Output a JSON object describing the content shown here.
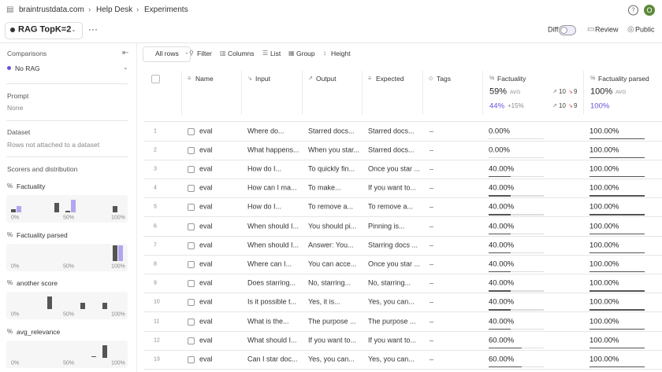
{
  "breadcrumbs": [
    "braintrustdata.com",
    "Help Desk",
    "Experiments"
  ],
  "avatar": "O",
  "experiment": "RAG TopK=2",
  "actions": {
    "diff": "Diff",
    "review": "Review",
    "public": "Public"
  },
  "sidebar": {
    "comparisons_label": "Comparisons",
    "comparison": "No RAG",
    "prompt_label": "Prompt",
    "prompt": "None",
    "dataset_label": "Dataset",
    "dataset": "Rows not attached to a dataset",
    "scorers_label": "Scorers and distribution",
    "scorers": [
      {
        "name": "Factuality",
        "axis": [
          "0%",
          "50%",
          "100%"
        ],
        "bars": [
          {
            "score": 0,
            "base": 1,
            "comparison": 2
          },
          {
            "score": 42,
            "base": 3,
            "comparison": 0
          },
          {
            "score": 52,
            "base": 0.5,
            "comparison": 4
          },
          {
            "score": 98,
            "base": 2,
            "comparison": 0
          }
        ]
      },
      {
        "name": "Factuality parsed",
        "axis": [
          "0%",
          "50%",
          "100%"
        ],
        "bars": [
          {
            "score": 98,
            "base": 5,
            "comparison": 5
          }
        ]
      },
      {
        "name": "another score",
        "axis": [
          "0%",
          "50%",
          "100%"
        ],
        "bars": [
          {
            "score": 35,
            "base": 4,
            "comparison": 0
          },
          {
            "score": 67,
            "base": 2,
            "comparison": 0
          },
          {
            "score": 88,
            "base": 2,
            "comparison": 0
          }
        ]
      },
      {
        "name": "avg_relevance",
        "axis": [
          "0%",
          "50%",
          "100%"
        ],
        "bars": [
          {
            "score": 77,
            "base": 0.3,
            "comparison": 0
          },
          {
            "score": 88,
            "base": 4,
            "comparison": 0
          }
        ]
      }
    ]
  },
  "toolbar": [
    "All rows",
    "Filter",
    "Columns",
    "List",
    "Group",
    "Height"
  ],
  "table": {
    "columns": [
      "Name",
      "Input",
      "Output",
      "Expected",
      "Tags",
      "Factuality",
      "Factuality parsed"
    ],
    "summary": {
      "factuality": {
        "avg": "59%",
        "avg_label": "AVG",
        "compare": "44%",
        "delta": "+15%",
        "improvements": "10",
        "regressions": "9",
        "compare_improvements": "10",
        "compare_regressions": "9"
      },
      "factuality_parsed": {
        "avg": "100%",
        "avg_label": "AVG",
        "compare": "100%"
      }
    },
    "rows": [
      {
        "index": 1,
        "name": "eval",
        "input": "Where do...",
        "output": "Starred docs...",
        "expected": "Starred docs...",
        "tags": "–",
        "factuality": {
          "value": 0,
          "label": "0.00%"
        },
        "factuality_parsed": {
          "value": 100,
          "label": "100.00%"
        }
      },
      {
        "index": 2,
        "name": "eval",
        "input": "What happens...",
        "output": "When you star...",
        "expected": "Starred docs...",
        "tags": "–",
        "factuality": {
          "value": 0,
          "label": "0.00%"
        },
        "factuality_parsed": {
          "value": 100,
          "label": "100.00%"
        }
      },
      {
        "index": 3,
        "name": "eval",
        "input": "How do I...",
        "output": "To quickly fin...",
        "expected": "Once you star ...",
        "tags": "–",
        "factuality": {
          "value": 40,
          "label": "40.00%"
        },
        "factuality_parsed": {
          "value": 100,
          "label": "100.00%"
        }
      },
      {
        "index": 4,
        "name": "eval",
        "input": "How can I ma...",
        "output": "To make...",
        "expected": "If you want to...",
        "tags": "–",
        "factuality": {
          "value": 40,
          "label": "40.00%"
        },
        "factuality_parsed": {
          "value": 100,
          "label": "100.00%"
        }
      },
      {
        "index": 5,
        "name": "eval",
        "input": "How do I...",
        "output": "To remove a...",
        "expected": "To remove a...",
        "tags": "–",
        "factuality": {
          "value": 40,
          "label": "40.00%"
        },
        "factuality_parsed": {
          "value": 100,
          "label": "100.00%"
        }
      },
      {
        "index": 6,
        "name": "eval",
        "input": "When should I...",
        "output": "You should pi...",
        "expected": "Pinning is...",
        "tags": "–",
        "factuality": {
          "value": 40,
          "label": "40.00%"
        },
        "factuality_parsed": {
          "value": 100,
          "label": "100.00%"
        }
      },
      {
        "index": 7,
        "name": "eval",
        "input": "When should I...",
        "output": "Answer: You...",
        "expected": "Starring docs ...",
        "tags": "–",
        "factuality": {
          "value": 40,
          "label": "40.00%"
        },
        "factuality_parsed": {
          "value": 100,
          "label": "100.00%"
        }
      },
      {
        "index": 8,
        "name": "eval",
        "input": "Where can I...",
        "output": "You can acce...",
        "expected": "Once you star ...",
        "tags": "–",
        "factuality": {
          "value": 40,
          "label": "40.00%"
        },
        "factuality_parsed": {
          "value": 100,
          "label": "100.00%"
        }
      },
      {
        "index": 9,
        "name": "eval",
        "input": "Does starring...",
        "output": "No, starring...",
        "expected": "No, starring...",
        "tags": "–",
        "factuality": {
          "value": 40,
          "label": "40.00%"
        },
        "factuality_parsed": {
          "value": 100,
          "label": "100.00%"
        }
      },
      {
        "index": 10,
        "name": "eval",
        "input": "Is it possible t...",
        "output": "Yes, it is...",
        "expected": "Yes, you can...",
        "tags": "–",
        "factuality": {
          "value": 40,
          "label": "40.00%"
        },
        "factuality_parsed": {
          "value": 100,
          "label": "100.00%"
        }
      },
      {
        "index": 11,
        "name": "eval",
        "input": "What is the...",
        "output": "The purpose ...",
        "expected": "The purpose ...",
        "tags": "–",
        "factuality": {
          "value": 40,
          "label": "40.00%"
        },
        "factuality_parsed": {
          "value": 100,
          "label": "100.00%"
        }
      },
      {
        "index": 12,
        "name": "eval",
        "input": "What should I...",
        "output": "If you want to...",
        "expected": "If you want to...",
        "tags": "–",
        "factuality": {
          "value": 60,
          "label": "60.00%"
        },
        "factuality_parsed": {
          "value": 100,
          "label": "100.00%"
        }
      },
      {
        "index": 13,
        "name": "eval",
        "input": "Can I star doc...",
        "output": "Yes, you can...",
        "expected": "Yes, you can...",
        "tags": "–",
        "factuality": {
          "value": 60,
          "label": "60.00%"
        },
        "factuality_parsed": {
          "value": 100,
          "label": "100.00%"
        }
      }
    ]
  }
}
